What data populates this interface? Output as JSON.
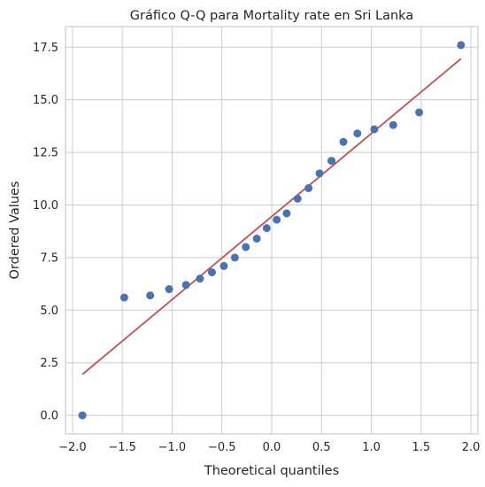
{
  "chart_data": {
    "type": "scatter",
    "title": "Gráfico Q-Q para Mortality rate en Sri Lanka",
    "xlabel": "Theoretical quantiles",
    "ylabel": "Ordered Values",
    "xlim": [
      -2.07,
      2.07
    ],
    "ylim": [
      -0.88,
      18.48
    ],
    "grid": true,
    "x_ticks": [
      -2.0,
      -1.5,
      -1.0,
      -0.5,
      0.0,
      0.5,
      1.0,
      1.5,
      2.0
    ],
    "x_tick_labels": [
      "−2.0",
      "−1.5",
      "−1.0",
      "−0.5",
      "0.0",
      "0.5",
      "1.0",
      "1.5",
      "2.0"
    ],
    "y_ticks": [
      0.0,
      2.5,
      5.0,
      7.5,
      10.0,
      12.5,
      15.0,
      17.5
    ],
    "y_tick_labels": [
      "0.0",
      "2.5",
      "5.0",
      "7.5",
      "10.0",
      "12.5",
      "15.0",
      "17.5"
    ],
    "series": [
      {
        "kind": "points",
        "color": "#4c72b0",
        "x": [
          -1.9,
          -1.48,
          -1.22,
          -1.03,
          -0.86,
          -0.72,
          -0.6,
          -0.48,
          -0.37,
          -0.26,
          -0.15,
          -0.05,
          0.05,
          0.15,
          0.26,
          0.37,
          0.48,
          0.6,
          0.72,
          0.86,
          1.03,
          1.22,
          1.48,
          1.9
        ],
        "y": [
          0.0,
          5.6,
          5.7,
          6.0,
          6.2,
          6.5,
          6.8,
          7.1,
          7.5,
          8.0,
          8.4,
          8.9,
          9.3,
          9.6,
          10.3,
          10.8,
          11.5,
          12.1,
          13.0,
          13.4,
          13.6,
          13.8,
          14.4,
          17.6
        ]
      },
      {
        "kind": "fit-line",
        "color": "#c44e52",
        "x": [
          -1.9,
          1.9
        ],
        "y": [
          1.95,
          16.95
        ]
      }
    ]
  }
}
